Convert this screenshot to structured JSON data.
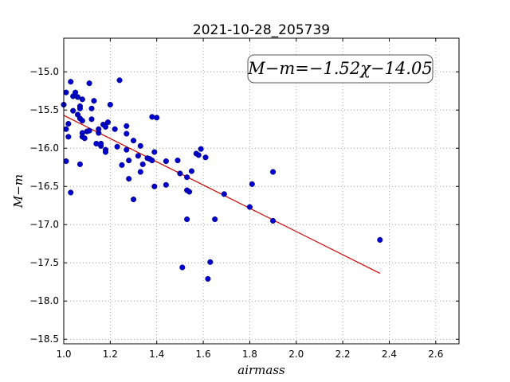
{
  "chart_data": {
    "type": "scatter",
    "title": "2021-10-28_205739",
    "xlabel": "airmass",
    "ylabel": "M−m",
    "annotation": "M−m=−1.52χ−14.05",
    "xlim": [
      1.0,
      2.7
    ],
    "ylim": [
      -18.56,
      -14.56
    ],
    "x_ticks": [
      1.0,
      1.2,
      1.4,
      1.6,
      1.8,
      2.0,
      2.2,
      2.4,
      2.6
    ],
    "y_ticks": [
      -15.0,
      -15.5,
      -16.0,
      -16.5,
      -17.0,
      -17.5,
      -18.0,
      -18.5
    ],
    "grid": true,
    "point_color": "#0000cc",
    "fit_color": "#cc0000",
    "fit": {
      "slope": -1.52,
      "intercept": -14.05,
      "x_range": [
        1.0,
        2.36
      ]
    },
    "points": [
      [
        1.0,
        -15.43
      ],
      [
        1.01,
        -15.27
      ],
      [
        1.01,
        -15.75
      ],
      [
        1.01,
        -16.17
      ],
      [
        1.02,
        -15.68
      ],
      [
        1.02,
        -15.85
      ],
      [
        1.03,
        -15.13
      ],
      [
        1.03,
        -16.58
      ],
      [
        1.04,
        -15.32
      ],
      [
        1.04,
        -15.51
      ],
      [
        1.05,
        -15.27
      ],
      [
        1.06,
        -15.33
      ],
      [
        1.06,
        -15.56
      ],
      [
        1.07,
        -15.45
      ],
      [
        1.07,
        -15.48
      ],
      [
        1.07,
        -15.61
      ],
      [
        1.07,
        -16.21
      ],
      [
        1.08,
        -15.64
      ],
      [
        1.08,
        -15.8
      ],
      [
        1.08,
        -15.85
      ],
      [
        1.08,
        -15.36
      ],
      [
        1.09,
        -15.87
      ],
      [
        1.1,
        -15.78
      ],
      [
        1.11,
        -15.77
      ],
      [
        1.11,
        -15.15
      ],
      [
        1.12,
        -15.48
      ],
      [
        1.12,
        -15.62
      ],
      [
        1.13,
        -15.38
      ],
      [
        1.14,
        -15.94
      ],
      [
        1.15,
        -15.8
      ],
      [
        1.15,
        -15.75
      ],
      [
        1.16,
        -15.97
      ],
      [
        1.16,
        -15.94
      ],
      [
        1.17,
        -15.69
      ],
      [
        1.18,
        -15.72
      ],
      [
        1.18,
        -16.02
      ],
      [
        1.18,
        -16.05
      ],
      [
        1.19,
        -15.66
      ],
      [
        1.2,
        -15.43
      ],
      [
        1.22,
        -15.75
      ],
      [
        1.23,
        -15.98
      ],
      [
        1.24,
        -15.11
      ],
      [
        1.25,
        -16.22
      ],
      [
        1.27,
        -15.71
      ],
      [
        1.27,
        -15.81
      ],
      [
        1.27,
        -16.02
      ],
      [
        1.28,
        -16.4
      ],
      [
        1.28,
        -16.16
      ],
      [
        1.3,
        -15.9
      ],
      [
        1.3,
        -16.67
      ],
      [
        1.32,
        -16.1
      ],
      [
        1.33,
        -16.31
      ],
      [
        1.33,
        -15.97
      ],
      [
        1.34,
        -16.21
      ],
      [
        1.36,
        -16.13
      ],
      [
        1.37,
        -16.14
      ],
      [
        1.38,
        -15.59
      ],
      [
        1.38,
        -16.16
      ],
      [
        1.39,
        -16.05
      ],
      [
        1.39,
        -16.5
      ],
      [
        1.4,
        -15.6
      ],
      [
        1.44,
        -16.17
      ],
      [
        1.44,
        -16.48
      ],
      [
        1.49,
        -16.16
      ],
      [
        1.5,
        -16.33
      ],
      [
        1.51,
        -17.56
      ],
      [
        1.53,
        -16.38
      ],
      [
        1.53,
        -16.93
      ],
      [
        1.53,
        -16.55
      ],
      [
        1.54,
        -16.57
      ],
      [
        1.55,
        -16.3
      ],
      [
        1.57,
        -16.07
      ],
      [
        1.58,
        -16.09
      ],
      [
        1.59,
        -16.01
      ],
      [
        1.61,
        -16.12
      ],
      [
        1.62,
        -17.71
      ],
      [
        1.63,
        -17.49
      ],
      [
        1.65,
        -16.93
      ],
      [
        1.69,
        -16.6
      ],
      [
        1.8,
        -16.77
      ],
      [
        1.81,
        -16.47
      ],
      [
        1.9,
        -16.31
      ],
      [
        1.9,
        -16.95
      ],
      [
        2.36,
        -17.2
      ]
    ]
  }
}
